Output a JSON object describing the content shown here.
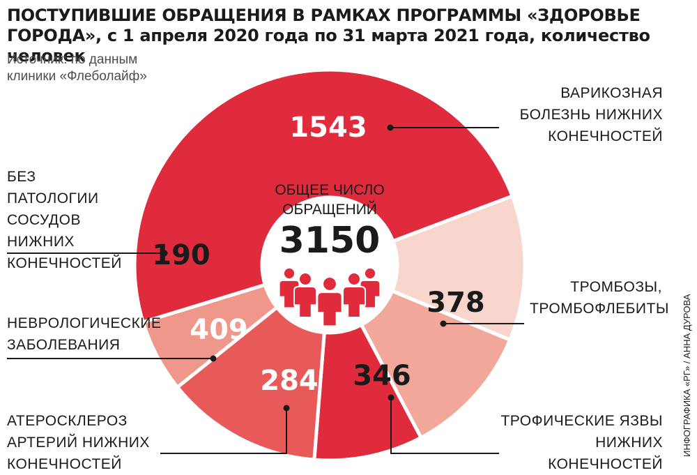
{
  "header": {
    "title": "ПОСТУПИВШИЕ ОБРАЩЕНИЯ В РАМКАХ ПРОГРАММЫ «ЗДОРОВЬЕ ГОРОДА», с 1 апреля 2020 года по 31 марта 2021 года, количество человек",
    "source": "Источник: по данным клиники «Флеболайф»"
  },
  "center": {
    "caption": "ОБЩЕЕ ЧИСЛО ОБРАЩЕНИЙ",
    "total": "3150",
    "icon": "people-group-icon"
  },
  "credit": "ИНФОГРАФИКА «РГ» / АННА ДУРОВА",
  "colors": {
    "varicose": "#e02b3c",
    "thrombosis": "#f9d6cd",
    "ulcers": "#f1a89a",
    "atherosclerosis": "#e02b3c",
    "neuro": "#e85a5a",
    "no_pathology": "#ef978a",
    "icon": "#e02b3c"
  },
  "chart_data": {
    "type": "pie",
    "style": "donut",
    "total": 3150,
    "slices": [
      {
        "key": "varicose",
        "label": "ВАРИКОЗНАЯ БОЛЕЗНЬ НИЖНИХ КОНЕЧНОСТЕЙ",
        "value": 1543
      },
      {
        "key": "thrombosis",
        "label": "ТРОМБОЗЫ, ТРОМБОФЛЕБИТЫ",
        "value": 378
      },
      {
        "key": "ulcers",
        "label": "ТРОФИЧЕСКИЕ ЯЗВЫ НИЖНИХ КОНЕЧНОСТЕЙ",
        "value": 346
      },
      {
        "key": "atherosclerosis",
        "label": "АТЕРОСКЛЕРОЗ АРТЕРИЙ НИЖНИХ КОНЕЧНОСТЕЙ",
        "value": 284
      },
      {
        "key": "neuro",
        "label": "НЕВРОЛОГИЧЕСКИЕ ЗАБОЛЕВАНИЯ",
        "value": 409
      },
      {
        "key": "no_pathology",
        "label": "БЕЗ ПАТОЛОГИИ СОСУДОВ НИЖНИХ КОНЕЧНОСТЕЙ",
        "value": 190
      }
    ]
  }
}
